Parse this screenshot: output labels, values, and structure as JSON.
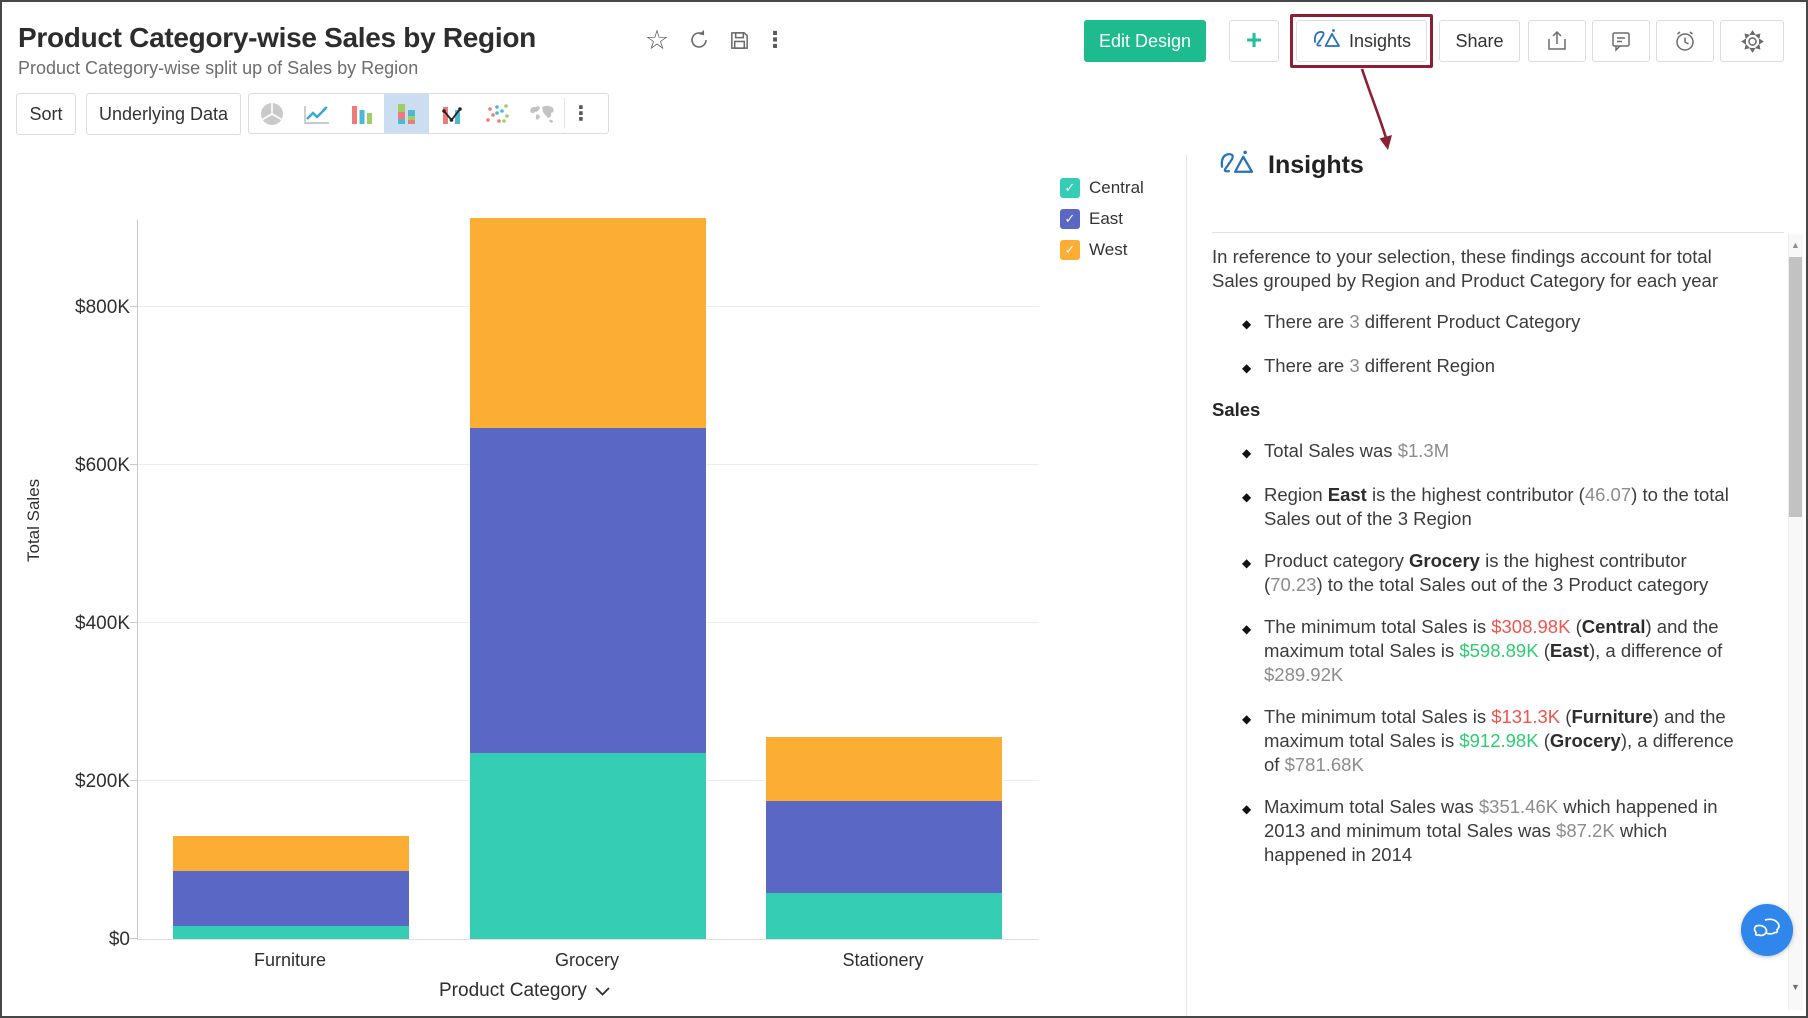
{
  "header": {
    "title": "Product Category-wise Sales by Region",
    "subtitle": "Product Category-wise split up of Sales by Region",
    "actions": {
      "edit_design": "Edit Design",
      "plus": "+",
      "insights": "Insights",
      "share": "Share"
    }
  },
  "toolbar": {
    "sort": "Sort",
    "underlying_data": "Underlying Data"
  },
  "icons": {
    "star": "☆",
    "ellipsis": "⋮",
    "check": "✓",
    "up_arrow": "▲",
    "down_arrow": "▼",
    "bullet_diamond": "◆"
  },
  "chart_data": {
    "type": "bar",
    "stacked": true,
    "title": "Product Category-wise Sales by Region",
    "xlabel": "Product Category",
    "ylabel": "Total Sales",
    "unit": "thousand USD",
    "categories": [
      "Furniture",
      "Grocery",
      "Stationery"
    ],
    "series": [
      {
        "name": "Central",
        "color": "#35ceb5",
        "values": [
          16,
          235,
          58
        ]
      },
      {
        "name": "East",
        "color": "#5b67c4",
        "values": [
          70,
          412,
          117
        ]
      },
      {
        "name": "West",
        "color": "#fcad33",
        "values": [
          45,
          266,
          81
        ]
      }
    ],
    "category_totals": [
      131.3,
      912.98,
      255.72
    ],
    "ylim": [
      0,
      911
    ],
    "y_ticks": [
      {
        "label": "$0",
        "value": 0
      },
      {
        "label": "$200K",
        "value": 200
      },
      {
        "label": "$400K",
        "value": 400
      },
      {
        "label": "$600K",
        "value": 600
      },
      {
        "label": "$800K",
        "value": 800
      }
    ],
    "grid": true,
    "legend_position": "top-right"
  },
  "insights": {
    "heading": "Insights",
    "intro": "In reference to your selection, these findings account for total Sales grouped by Region and Product Category for each year",
    "sections": [
      {
        "type": "bullet",
        "runs": [
          {
            "t": "There are "
          },
          {
            "t": "3",
            "s": "num"
          },
          {
            "t": " different Product Category"
          }
        ]
      },
      {
        "type": "bullet",
        "runs": [
          {
            "t": "There are "
          },
          {
            "t": "3",
            "s": "num"
          },
          {
            "t": " different Region"
          }
        ]
      },
      {
        "type": "heading",
        "text": "Sales"
      },
      {
        "type": "bullet",
        "runs": [
          {
            "t": "Total Sales was "
          },
          {
            "t": "$1.3M",
            "s": "num"
          }
        ]
      },
      {
        "type": "bullet",
        "runs": [
          {
            "t": "Region "
          },
          {
            "t": "East",
            "s": "b"
          },
          {
            "t": " is the highest contributor ("
          },
          {
            "t": "46.07",
            "s": "num"
          },
          {
            "t": ") to the total Sales out of the 3 Region"
          }
        ]
      },
      {
        "type": "bullet",
        "runs": [
          {
            "t": "Product category "
          },
          {
            "t": "Grocery",
            "s": "b"
          },
          {
            "t": " is the highest contributor ("
          },
          {
            "t": "70.23",
            "s": "num"
          },
          {
            "t": ") to the total Sales out of the 3 Product category"
          }
        ]
      },
      {
        "type": "bullet",
        "runs": [
          {
            "t": "The minimum total Sales is "
          },
          {
            "t": "$308.98K",
            "s": "minv"
          },
          {
            "t": " ("
          },
          {
            "t": "Central",
            "s": "b"
          },
          {
            "t": ") and the maximum total Sales is "
          },
          {
            "t": "$598.89K",
            "s": "maxv"
          },
          {
            "t": " ("
          },
          {
            "t": "East",
            "s": "b"
          },
          {
            "t": "), a difference of "
          },
          {
            "t": "$289.92K",
            "s": "num"
          }
        ]
      },
      {
        "type": "bullet",
        "runs": [
          {
            "t": "The minimum total Sales is "
          },
          {
            "t": "$131.3K",
            "s": "minv"
          },
          {
            "t": " ("
          },
          {
            "t": "Furniture",
            "s": "b"
          },
          {
            "t": ") and the maximum total Sales is "
          },
          {
            "t": "$912.98K",
            "s": "maxv"
          },
          {
            "t": " ("
          },
          {
            "t": "Grocery",
            "s": "b"
          },
          {
            "t": "), a difference of "
          },
          {
            "t": "$781.68K",
            "s": "num"
          }
        ]
      },
      {
        "type": "bullet",
        "runs": [
          {
            "t": "Maximum total Sales was "
          },
          {
            "t": "$351.46K",
            "s": "num"
          },
          {
            "t": " which happened in 2013 and minimum total Sales was "
          },
          {
            "t": "$87.2K",
            "s": "num"
          },
          {
            "t": " which happened in 2014"
          }
        ]
      }
    ]
  },
  "colors": {
    "accent_green": "#1dbb8d",
    "highlight_red": "#8e1f33",
    "zia_blue": "#2672bc",
    "selected_chart_icon_bg": "#cbddf0",
    "min_red": "#f5524e",
    "max_green": "#2ecd72",
    "chat_fab_blue": "#2f86eb"
  }
}
